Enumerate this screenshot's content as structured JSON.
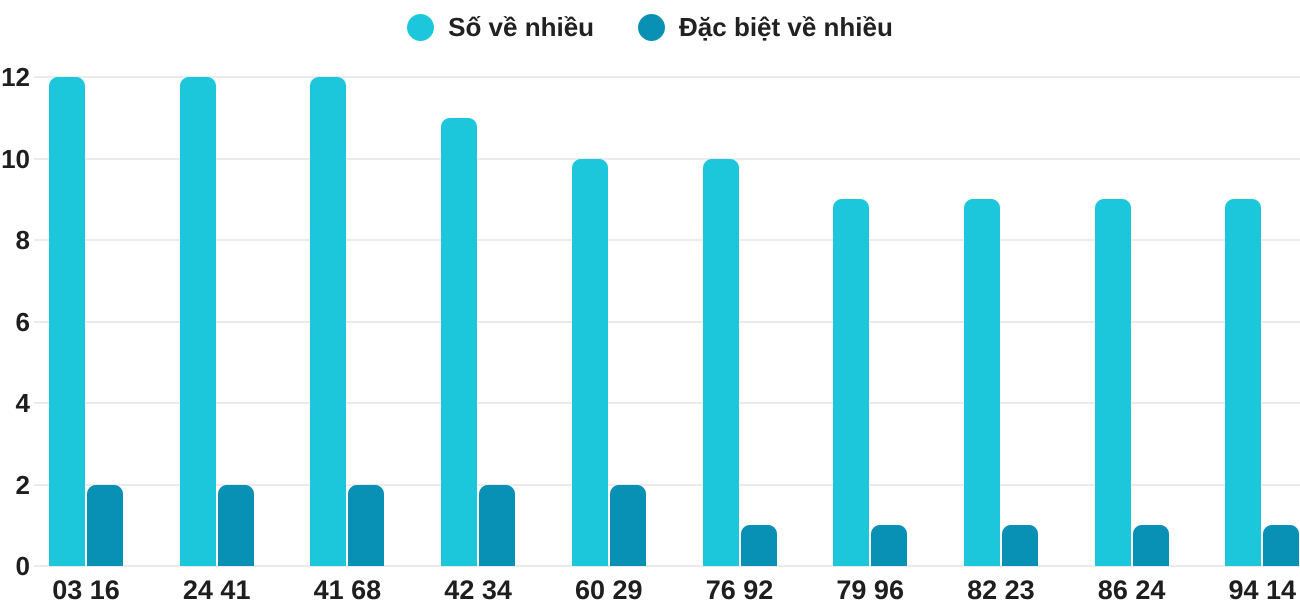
{
  "chart_data": {
    "type": "bar",
    "title": "",
    "categories": [
      "03 16",
      "24 41",
      "41 68",
      "42 34",
      "60 29",
      "76 92",
      "79 96",
      "82 23",
      "86 24",
      "94 14"
    ],
    "series": [
      {
        "name": "Số về nhiều",
        "color": "#1CC7DC",
        "values": [
          12,
          12,
          12,
          11,
          10,
          10,
          9,
          9,
          9,
          9
        ]
      },
      {
        "name": "Đặc biệt về nhiều",
        "color": "#0991B5",
        "values": [
          2,
          2,
          2,
          2,
          2,
          1,
          1,
          1,
          1,
          1
        ]
      }
    ],
    "xlabel": "",
    "ylabel": "",
    "ylim": [
      0,
      12
    ],
    "yticks": [
      0,
      2,
      4,
      6,
      8,
      10,
      12
    ],
    "grid": "horizontal",
    "legend_position": "top-center"
  },
  "legend": {
    "items": [
      {
        "label": "Số về nhiều"
      },
      {
        "label": "Đặc biệt về nhiều"
      }
    ]
  },
  "colors": {
    "background": "#FFFFFF",
    "gridline": "#EBEBEB",
    "axis_text": "#1E1E1E",
    "series_primary": "#1CC7DC",
    "series_secondary": "#0991B5"
  }
}
